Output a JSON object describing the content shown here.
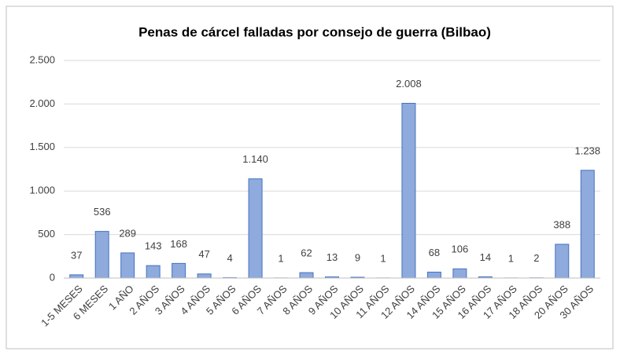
{
  "chart_data": {
    "type": "bar",
    "title": "Penas de cárcel falladas por consejo de guerra (Bilbao)",
    "categories": [
      "1-5 MESES",
      "6 MESES",
      "1 AÑO",
      "2 AÑOS",
      "3 AÑOS",
      "4 AÑOS",
      "5 AÑOS",
      "6 AÑOS",
      "7 AÑOS",
      "8 AÑOS",
      "9 AÑOS",
      "10 AÑOS",
      "11 AÑOS",
      "12 AÑOS",
      "14 AÑOS",
      "15 AÑOS",
      "16 AÑOS",
      "17 AÑOS",
      "18 AÑOS",
      "20 AÑOS",
      "30 AÑOS"
    ],
    "values": [
      37,
      536,
      289,
      143,
      168,
      47,
      4,
      1140,
      1,
      62,
      13,
      9,
      1,
      2008,
      68,
      106,
      14,
      1,
      2,
      388,
      1238
    ],
    "value_labels": [
      "37",
      "536",
      "289",
      "143",
      "168",
      "47",
      "4",
      "1.140",
      "1",
      "62",
      "13",
      "9",
      "1",
      "2.008",
      "68",
      "106",
      "14",
      "1",
      "2",
      "388",
      "1.238"
    ],
    "color": "#8faadc",
    "ylim": [
      0,
      2500
    ],
    "yticks": [
      0,
      500,
      {
        "value": 1000,
        "label": "1.000"
      },
      {
        "value": 1500,
        "label": "1.500"
      },
      {
        "value": 2000,
        "label": "2.000"
      },
      {
        "value": 2500,
        "label": "2.500"
      }
    ],
    "grid": true
  }
}
